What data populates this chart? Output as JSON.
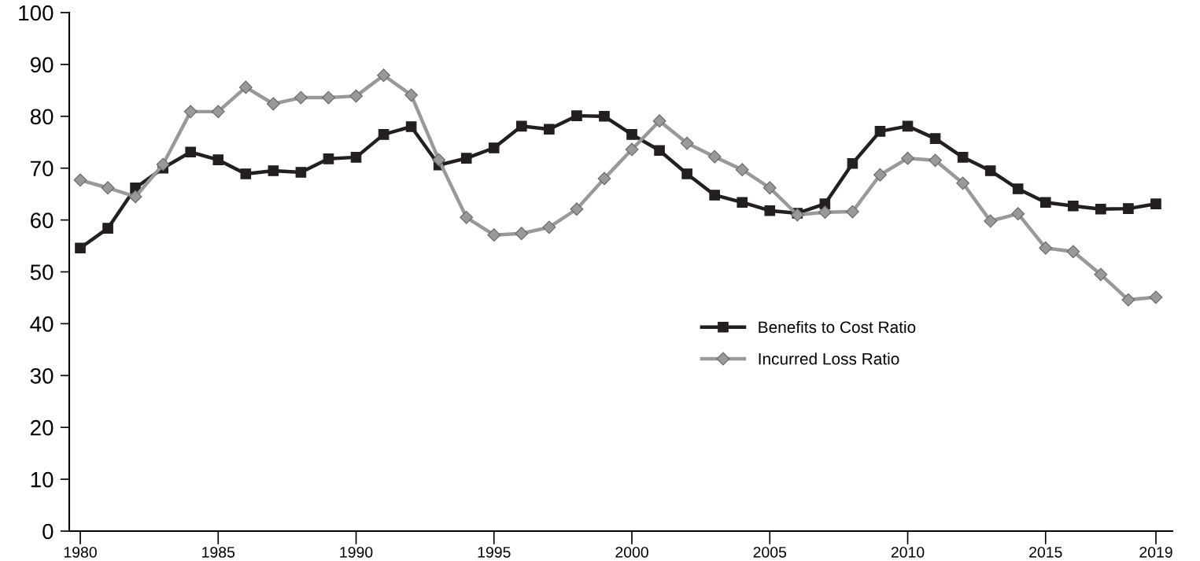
{
  "chart_data": {
    "type": "line",
    "x": [
      1980,
      1981,
      1982,
      1983,
      1984,
      1985,
      1986,
      1987,
      1988,
      1989,
      1990,
      1991,
      1992,
      1993,
      1994,
      1995,
      1996,
      1997,
      1998,
      1999,
      2000,
      2001,
      2002,
      2003,
      2004,
      2005,
      2006,
      2007,
      2008,
      2009,
      2010,
      2011,
      2012,
      2013,
      2014,
      2015,
      2016,
      2017,
      2018,
      2019
    ],
    "series": [
      {
        "name": "Benefits to Cost Ratio",
        "color": "#231f20",
        "marker": "square",
        "values": [
          54.6,
          58.4,
          66.2,
          70.0,
          73.1,
          71.6,
          68.9,
          69.5,
          69.2,
          71.8,
          72.1,
          76.5,
          78.0,
          70.6,
          71.9,
          73.9,
          78.1,
          77.5,
          80.1,
          80.0,
          76.5,
          73.4,
          68.9,
          64.8,
          63.4,
          61.8,
          61.3,
          63.1,
          70.9,
          77.1,
          78.1,
          75.7,
          72.1,
          69.5,
          66.0,
          63.4,
          62.7,
          62.1,
          62.2,
          63.1
        ]
      },
      {
        "name": "Incurred Loss Ratio",
        "color": "#999999",
        "marker": "diamond",
        "values": [
          67.7,
          66.2,
          64.5,
          70.7,
          80.9,
          80.9,
          85.6,
          82.4,
          83.6,
          83.6,
          83.9,
          87.9,
          84.1,
          71.6,
          60.5,
          57.1,
          57.4,
          58.6,
          62.1,
          68.0,
          73.6,
          79.1,
          74.8,
          72.2,
          69.7,
          66.2,
          61.0,
          61.5,
          61.6,
          68.7,
          71.9,
          71.5,
          67.1,
          59.8,
          61.2,
          54.6,
          53.9,
          49.5,
          44.6,
          45.1
        ]
      }
    ],
    "xlim": [
      1979.6,
      2019.6
    ],
    "xticks": [
      1980,
      1985,
      1990,
      1995,
      2000,
      2005,
      2010,
      2015,
      2019
    ],
    "ylim": [
      0,
      100
    ],
    "yticks": [
      0,
      10,
      20,
      30,
      40,
      50,
      60,
      70,
      80,
      90,
      100
    ],
    "grid": false,
    "legend": "center",
    "line_style": "solid"
  }
}
